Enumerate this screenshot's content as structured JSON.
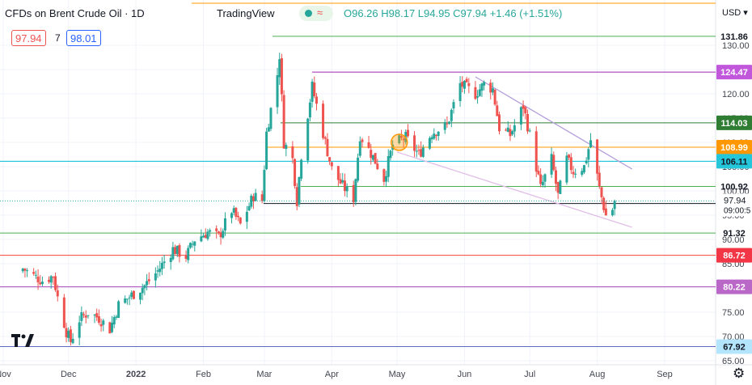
{
  "header": {
    "symbol_title": "CFDs on Brent Crude Oil · 1D",
    "brand": "TradingView",
    "ohlc": "O96.26 H98.17 L94.95 C97.94 +1.46 (+1.51%)",
    "sell_price": "97.94",
    "spread": "7",
    "buy_price": "98.01",
    "currency": "USD",
    "market_icon": "market-status-icon",
    "logo_text": "TV",
    "settings_icon": "gear-icon"
  },
  "colors": {
    "up": "#26a69a",
    "down": "#ef5350",
    "background": "#ffffff",
    "grid": "#f0f3fa"
  },
  "chart_data": {
    "type": "candlestick",
    "title": "CFDs on Brent Crude Oil · 1D",
    "x_axis": {
      "tick_labels": [
        "Nov",
        "Dec",
        "2022",
        "Feb",
        "Mar",
        "Apr",
        "May",
        "Jun",
        "Jul",
        "Aug",
        "Sep"
      ],
      "range": [
        "2021-11-09",
        "2022-09-15"
      ]
    },
    "y_axis": {
      "tick_labels": [
        "65.00",
        "70.00",
        "75.00",
        "80.00",
        "85.00",
        "90.00",
        "95.00",
        "100.00",
        "105.00",
        "110.00",
        "115.00",
        "120.00",
        "125.00",
        "130.00"
      ],
      "range": [
        64.5,
        137.5
      ],
      "position": "right"
    },
    "price_close_path": [
      [
        "2021-11-10",
        84.0
      ],
      [
        "2021-11-15",
        82.5
      ],
      [
        "2021-11-19",
        81.5
      ],
      [
        "2021-11-24",
        82.5
      ],
      [
        "2021-11-26",
        78.0
      ],
      [
        "2021-11-30",
        71.0
      ],
      [
        "2021-12-02",
        69.0
      ],
      [
        "2021-12-06",
        73.5
      ],
      [
        "2021-12-10",
        75.0
      ],
      [
        "2021-12-15",
        73.8
      ],
      [
        "2021-12-20",
        71.5
      ],
      [
        "2021-12-24",
        76.5
      ],
      [
        "2021-12-30",
        78.5
      ],
      [
        "2022-01-05",
        80.5
      ],
      [
        "2022-01-11",
        83.5
      ],
      [
        "2022-01-18",
        88.0
      ],
      [
        "2022-01-24",
        86.5
      ],
      [
        "2022-01-28",
        90.0
      ],
      [
        "2022-02-03",
        91.5
      ],
      [
        "2022-02-08",
        90.5
      ],
      [
        "2022-02-14",
        96.0
      ],
      [
        "2022-02-18",
        93.0
      ],
      [
        "2022-02-24",
        99.0
      ],
      [
        "2022-02-28",
        98.0
      ],
      [
        "2022-03-02",
        112.0
      ],
      [
        "2022-03-07",
        124.0
      ],
      [
        "2022-03-08",
        128.0
      ],
      [
        "2022-03-10",
        110.0
      ],
      [
        "2022-03-14",
        106.5
      ],
      [
        "2022-03-16",
        98.0
      ],
      [
        "2022-03-18",
        107.5
      ],
      [
        "2022-03-23",
        121.5
      ],
      [
        "2022-03-29",
        110.0
      ],
      [
        "2022-04-01",
        104.5
      ],
      [
        "2022-04-06",
        101.0
      ],
      [
        "2022-04-11",
        98.5
      ],
      [
        "2022-04-14",
        111.5
      ],
      [
        "2022-04-20",
        107.0
      ],
      [
        "2022-04-25",
        102.5
      ],
      [
        "2022-04-29",
        109.5
      ],
      [
        "2022-05-05",
        111.0
      ],
      [
        "2022-05-11",
        107.5
      ],
      [
        "2022-05-17",
        112.0
      ],
      [
        "2022-05-24",
        113.5
      ],
      [
        "2022-05-30",
        122.0
      ],
      [
        "2022-06-06",
        120.0
      ],
      [
        "2022-06-10",
        122.0
      ],
      [
        "2022-06-14",
        121.0
      ],
      [
        "2022-06-17",
        113.0
      ],
      [
        "2022-06-22",
        111.5
      ],
      [
        "2022-06-28",
        117.5
      ],
      [
        "2022-07-01",
        111.5
      ],
      [
        "2022-07-06",
        100.5
      ],
      [
        "2022-07-11",
        106.5
      ],
      [
        "2022-07-14",
        99.0
      ],
      [
        "2022-07-18",
        106.5
      ],
      [
        "2022-07-21",
        104.0
      ],
      [
        "2022-07-26",
        105.0
      ],
      [
        "2022-07-29",
        110.5
      ],
      [
        "2022-08-02",
        100.5
      ],
      [
        "2022-08-05",
        94.9
      ],
      [
        "2022-08-08",
        96.3
      ],
      [
        "2022-08-09",
        97.94
      ]
    ],
    "horizontal_levels": [
      {
        "label": "131.86",
        "price": 131.86,
        "color": "#4caf50",
        "text_color": "#131722"
      },
      {
        "label": "124.47",
        "price": 124.47,
        "color": "#9c27b0",
        "text_color": "#ffffff",
        "bg": "#c158dc"
      },
      {
        "label": "114.03",
        "price": 114.03,
        "color": "#2e7d32",
        "text_color": "#ffffff",
        "bg": "#2e7d32"
      },
      {
        "label": "108.99",
        "price": 108.99,
        "color": "#ff9800",
        "text_color": "#ffffff",
        "bg": "#ff9800"
      },
      {
        "label": "106.11",
        "price": 106.11,
        "color": "#00bcd4",
        "text_color": "#131722",
        "bg": "#26c6da"
      },
      {
        "label": "100.92",
        "price": 100.92,
        "color": "#4caf50",
        "text_color": "#131722"
      },
      {
        "label": "97.40",
        "price": 97.4,
        "color": "#131722",
        "text_color": "#ffffff",
        "bg": "#131722"
      },
      {
        "label": "91.32",
        "price": 91.32,
        "color": "#4caf50",
        "text_color": "#131722"
      },
      {
        "label": "86.72",
        "price": 86.72,
        "color": "#f44336",
        "text_color": "#ffffff",
        "bg": "#f23645"
      },
      {
        "label": "80.22",
        "price": 80.22,
        "color": "#ab47bc",
        "text_color": "#ffffff",
        "bg": "#ba68c8"
      },
      {
        "label": "67.92",
        "price": 67.92,
        "color": "#5c6bc0",
        "text_color": "#131722",
        "bg": "#b3e5fc"
      }
    ],
    "last_price": {
      "label": "97.94",
      "price": 97.94,
      "countdown": "09:00:5"
    },
    "trend_lines": [
      {
        "name": "upper",
        "from": [
          "2022-06-06",
          123.5
        ],
        "to": [
          "2022-08-17",
          104.5
        ],
        "color": "#b39ddb"
      },
      {
        "name": "lower",
        "from": [
          "2022-05-01",
          108.0
        ],
        "to": [
          "2022-08-17",
          92.5
        ],
        "color": "#e1bee7"
      }
    ],
    "marker": {
      "date": "2022-05-02",
      "price": 110.0,
      "color": "#ff9800",
      "shape": "circle"
    }
  }
}
